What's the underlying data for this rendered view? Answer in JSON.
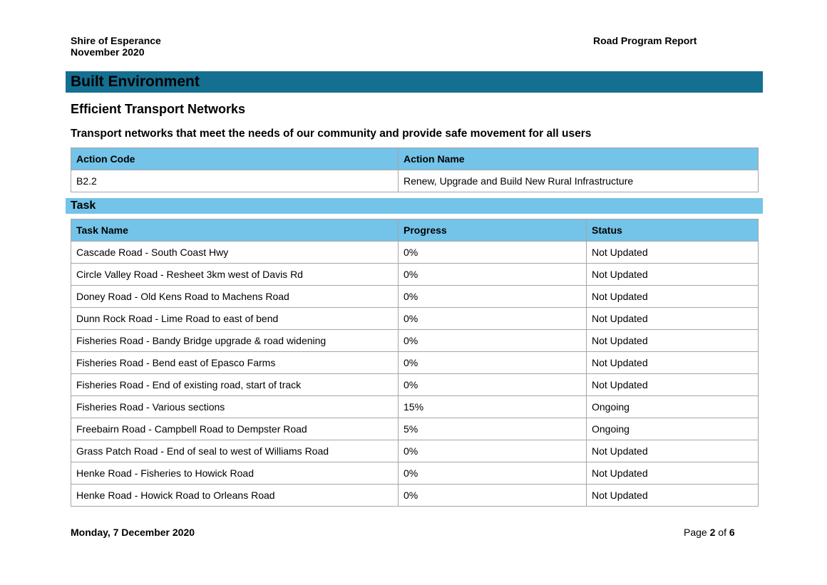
{
  "header": {
    "organisation": "Shire of Esperance",
    "period": "November 2020",
    "report_title": "Road Program Report"
  },
  "section": {
    "title": "Built Environment",
    "goal_title": "Efficient Transport Networks",
    "goal_description": "Transport networks that meet the needs of our community and provide safe movement for all users"
  },
  "action_table": {
    "headers": [
      "Action Code",
      "Action Name"
    ],
    "rows": [
      [
        "B2.2",
        "Renew, Upgrade and Build New Rural Infrastructure"
      ]
    ]
  },
  "task_section": {
    "title": "Task"
  },
  "task_table": {
    "headers": [
      "Task Name",
      "Progress",
      "Status"
    ],
    "rows": [
      [
        "Cascade Road - South Coast Hwy",
        "0%",
        "Not Updated"
      ],
      [
        "Circle Valley Road - Resheet 3km west of Davis Rd",
        "0%",
        "Not Updated"
      ],
      [
        "Doney Road - Old Kens Road to Machens Road",
        "0%",
        "Not Updated"
      ],
      [
        "Dunn Rock Road - Lime Road to east of bend",
        "0%",
        "Not Updated"
      ],
      [
        "Fisheries Road - Bandy Bridge upgrade & road widening",
        "0%",
        "Not Updated"
      ],
      [
        "Fisheries Road - Bend east of Epasco Farms",
        "0%",
        "Not Updated"
      ],
      [
        "Fisheries Road - End of existing road, start of track",
        "0%",
        "Not Updated"
      ],
      [
        "Fisheries Road - Various sections",
        "15%",
        "Ongoing"
      ],
      [
        "Freebairn Road - Campbell Road to Dempster Road",
        "5%",
        "Ongoing"
      ],
      [
        "Grass Patch Road - End of seal to west of Williams Road",
        "0%",
        "Not Updated"
      ],
      [
        "Henke Road - Fisheries to Howick Road",
        "0%",
        "Not Updated"
      ],
      [
        "Henke Road - Howick Road to Orleans Road",
        "0%",
        "Not Updated"
      ]
    ]
  },
  "footer": {
    "date": "Monday, 7 December 2020",
    "page_prefix": "Page ",
    "page_current": "2",
    "page_of": " of ",
    "page_total": "6"
  }
}
